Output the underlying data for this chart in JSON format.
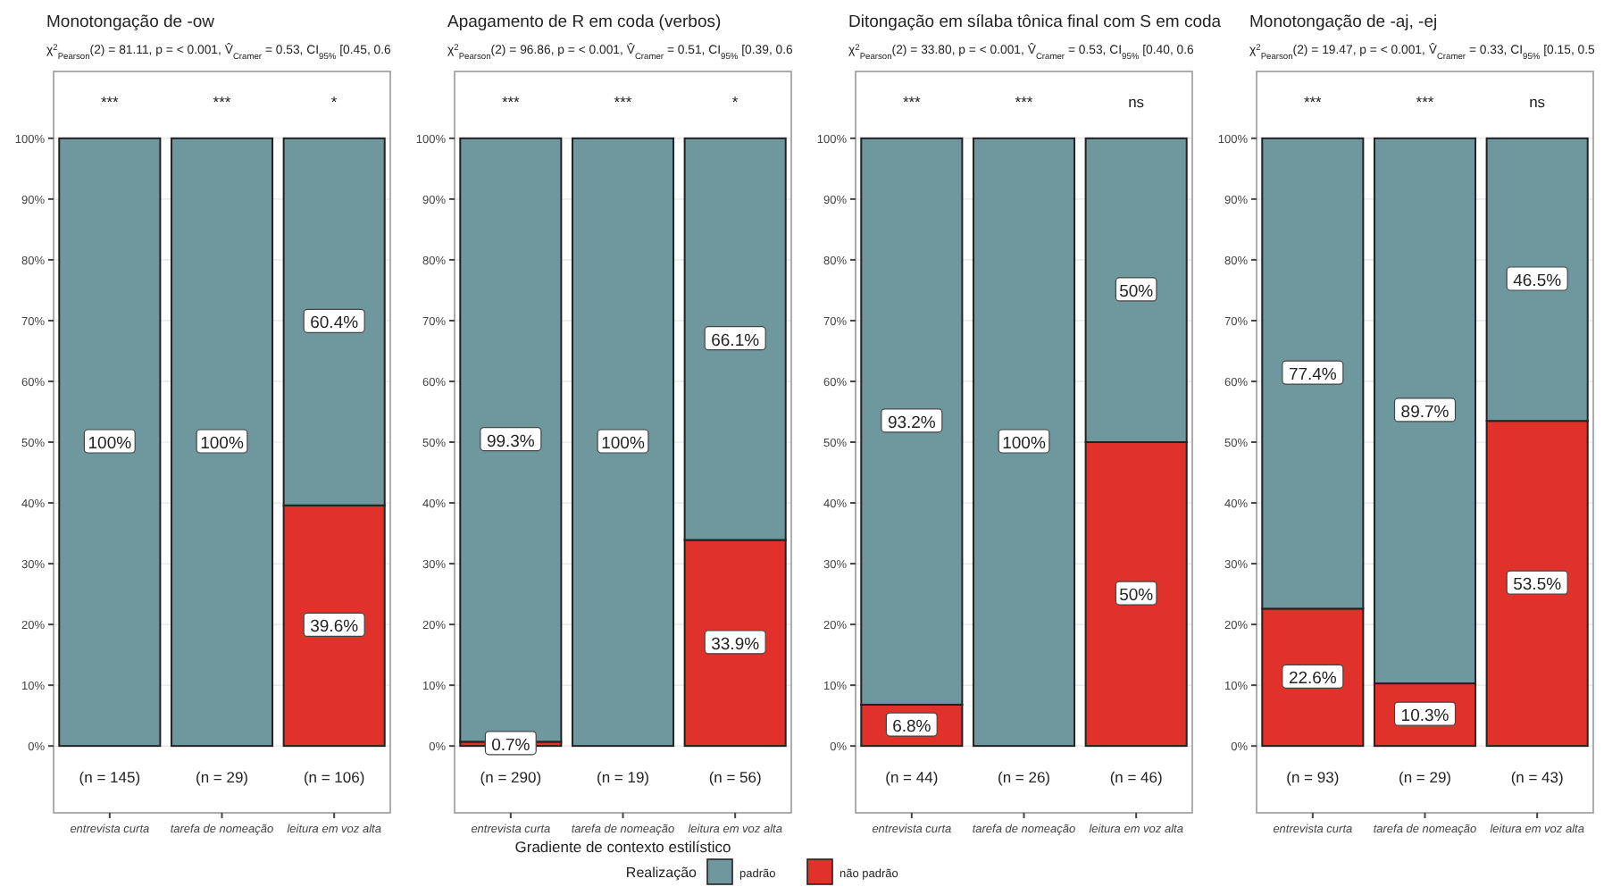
{
  "chart_data": [
    {
      "type": "bar",
      "title": "Monotongação de -ow",
      "subtitle": "χ$^{2}$$_{Pearson}$(2) = 81.11, p = < 0.001, V̂$_{Cramer}$ = 0.53, CI$_{95%}$ [0.45, 0.6",
      "categories": [
        "entrevista curta",
        "tarefa de nomeação",
        "leitura em voz alta"
      ],
      "stacked": true,
      "series": [
        {
          "color": "#e0312a",
          "values": [
            0,
            0,
            39.6
          ],
          "value_labels": [
            null,
            null,
            "39.6%"
          ]
        },
        {
          "color": "#6f989e",
          "values": [
            100,
            100,
            60.4
          ],
          "value_labels": [
            "100%",
            "100%",
            "60.4%"
          ]
        }
      ],
      "ylim": [
        -11,
        111
      ],
      "yticks": [
        {
          "value": 0,
          "label": "0%"
        },
        {
          "value": 10,
          "label": "10%"
        },
        {
          "value": 20,
          "label": "20%"
        },
        {
          "value": 30,
          "label": "30%"
        },
        {
          "value": 40,
          "label": "40%"
        },
        {
          "value": 50,
          "label": "50%"
        },
        {
          "value": 60,
          "label": "60%"
        },
        {
          "value": 70,
          "label": "70%"
        },
        {
          "value": 80,
          "label": "80%"
        },
        {
          "value": 90,
          "label": "90%"
        },
        {
          "value": 100,
          "label": "100%"
        }
      ],
      "grid": "y",
      "annotations": [
        "***",
        "***",
        "*",
        "(n = 145)",
        "(n = 29)",
        "(n = 106)"
      ]
    },
    {
      "type": "bar",
      "title": "Apagamento de R em coda (verbos)",
      "subtitle": "χ$^{2}$$_{Pearson}$(2) = 96.86, p = < 0.001, V̂$_{Cramer}$ = 0.51, CI$_{95%}$ [0.39, 0.6",
      "xlabel": "Gradiente de contexto estilístico",
      "legend_title": "Realização",
      "legend": "bottom",
      "categories": [
        "entrevista curta",
        "tarefa de nomeação",
        "leitura em voz alta"
      ],
      "stacked": true,
      "series": [
        {
          "name": "não padrão",
          "color": "#e0312a",
          "values": [
            0.7,
            0,
            33.9
          ],
          "value_labels": [
            "0.7%",
            null,
            "33.9%"
          ]
        },
        {
          "name": "padrão",
          "color": "#6f989e",
          "values": [
            99.3,
            100,
            66.1
          ],
          "value_labels": [
            "99.3%",
            "100%",
            "66.1%"
          ]
        }
      ],
      "ylim": [
        -11,
        111
      ],
      "yticks": [
        {
          "value": 0,
          "label": "0%"
        },
        {
          "value": 10,
          "label": "10%"
        },
        {
          "value": 20,
          "label": "20%"
        },
        {
          "value": 30,
          "label": "30%"
        },
        {
          "value": 40,
          "label": "40%"
        },
        {
          "value": 50,
          "label": "50%"
        },
        {
          "value": 60,
          "label": "60%"
        },
        {
          "value": 70,
          "label": "70%"
        },
        {
          "value": 80,
          "label": "80%"
        },
        {
          "value": 90,
          "label": "90%"
        },
        {
          "value": 100,
          "label": "100%"
        }
      ],
      "grid": "y",
      "annotations": [
        "***",
        "***",
        "*",
        "(n = 290)",
        "(n = 19)",
        "(n = 56)"
      ]
    },
    {
      "type": "bar",
      "title": "Ditongação em sílaba tônica final com S em coda",
      "subtitle": "χ$^{2}$$_{Pearson}$(2) = 33.80, p = < 0.001, V̂$_{Cramer}$ = 0.53, CI$_{95%}$ [0.40, 0.6",
      "categories": [
        "entrevista curta",
        "tarefa de nomeação",
        "leitura em voz alta"
      ],
      "stacked": true,
      "series": [
        {
          "color": "#e0312a",
          "values": [
            6.8,
            0,
            50
          ],
          "value_labels": [
            "6.8%",
            null,
            "50%"
          ]
        },
        {
          "color": "#6f989e",
          "values": [
            93.2,
            100,
            50
          ],
          "value_labels": [
            "93.2%",
            "100%",
            "50%"
          ]
        }
      ],
      "ylim": [
        -11,
        111
      ],
      "yticks": [
        {
          "value": 0,
          "label": "0%"
        },
        {
          "value": 10,
          "label": "10%"
        },
        {
          "value": 20,
          "label": "20%"
        },
        {
          "value": 30,
          "label": "30%"
        },
        {
          "value": 40,
          "label": "40%"
        },
        {
          "value": 50,
          "label": "50%"
        },
        {
          "value": 60,
          "label": "60%"
        },
        {
          "value": 70,
          "label": "70%"
        },
        {
          "value": 80,
          "label": "80%"
        },
        {
          "value": 90,
          "label": "90%"
        },
        {
          "value": 100,
          "label": "100%"
        }
      ],
      "grid": "y",
      "annotations": [
        "***",
        "***",
        "ns",
        "(n = 44)",
        "(n = 26)",
        "(n = 46)"
      ]
    },
    {
      "type": "bar",
      "title": "Monotongação de -aj, -ej",
      "subtitle": "χ$^{2}$$_{Pearson}$(2) = 19.47, p = < 0.001, V̂$_{Cramer}$ = 0.33, CI$_{95%}$ [0.15, 0.5",
      "categories": [
        "entrevista curta",
        "tarefa de nomeação",
        "leitura em voz alta"
      ],
      "stacked": true,
      "series": [
        {
          "color": "#e0312a",
          "values": [
            22.6,
            10.3,
            53.5
          ],
          "value_labels": [
            "22.6%",
            "10.3%",
            "53.5%"
          ]
        },
        {
          "color": "#6f989e",
          "values": [
            77.4,
            89.7,
            46.5
          ],
          "value_labels": [
            "77.4%",
            "89.7%",
            "46.5%"
          ]
        }
      ],
      "ylim": [
        -11,
        111
      ],
      "yticks": [
        {
          "value": 0,
          "label": "0%"
        },
        {
          "value": 10,
          "label": "10%"
        },
        {
          "value": 20,
          "label": "20%"
        },
        {
          "value": 30,
          "label": "30%"
        },
        {
          "value": 40,
          "label": "40%"
        },
        {
          "value": 50,
          "label": "50%"
        },
        {
          "value": 60,
          "label": "60%"
        },
        {
          "value": 70,
          "label": "70%"
        },
        {
          "value": 80,
          "label": "80%"
        },
        {
          "value": 90,
          "label": "90%"
        },
        {
          "value": 100,
          "label": "100%"
        }
      ],
      "grid": "y",
      "annotations": [
        "***",
        "***",
        "ns",
        "(n = 93)",
        "(n = 29)",
        "(n = 43)"
      ]
    }
  ]
}
